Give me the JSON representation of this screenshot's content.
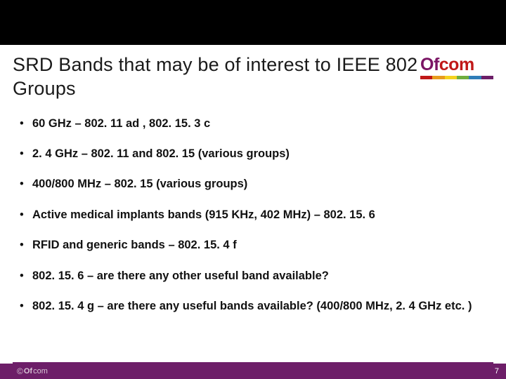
{
  "colors": {
    "top_bar": "#000000",
    "footer_bg": "#6d1e68",
    "footer_text": "#d8c6d6",
    "page_num": "#ffffff",
    "logo_of": "#7a1464",
    "logo_com": "#c01818",
    "logo_bars": [
      "#c01818",
      "#e89c1e",
      "#f4d21f",
      "#6fae3f",
      "#2f7db8",
      "#6d1e68"
    ]
  },
  "logo": {
    "of": "Of",
    "com": "com"
  },
  "title": "SRD Bands that may be of interest to IEEE 802 Groups",
  "bullets": [
    "60 GHz – 802. 11 ad , 802. 15. 3 c",
    "2. 4 GHz – 802. 11 and 802. 15 (various groups)",
    "400/800 MHz – 802. 15 (various groups)",
    "Active medical implants bands (915 KHz, 402 MHz) – 802. 15. 6",
    "RFID and generic bands – 802. 15. 4 f",
    "802. 15. 6 – are there any other useful band available?",
    "802. 15. 4 g – are there any useful bands available? (400/800 MHz, 2. 4 GHz etc. )"
  ],
  "footer": {
    "copyright": "©",
    "brand_of": "Of",
    "brand_com": "com",
    "page": "7"
  }
}
